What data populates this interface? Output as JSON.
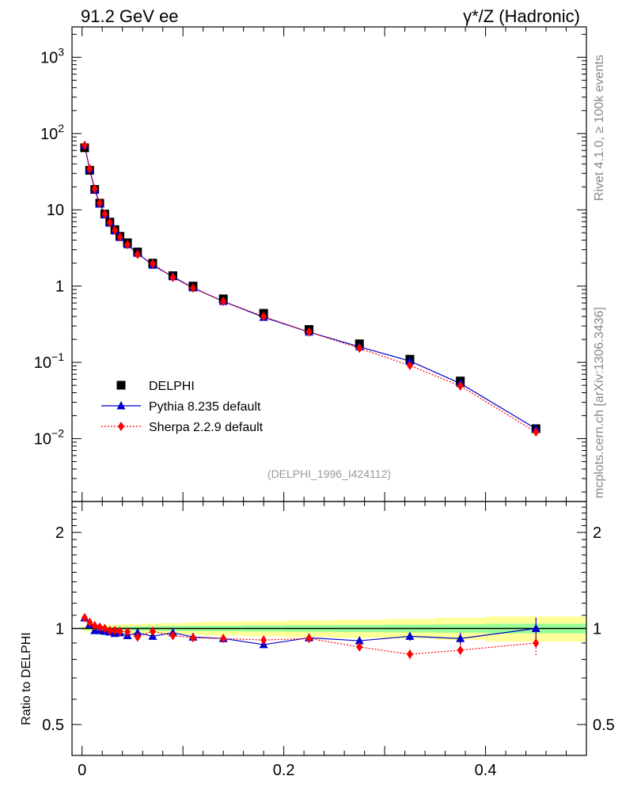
{
  "header": {
    "left_title": "91.2 GeV ee",
    "right_title": "γ*/Z (Hadronic)",
    "side_label_top": "Rivet 4.1.0, ≥ 100k events",
    "side_label_bottom": "mcplots.cern.ch [arXiv:1306.3436]",
    "analysis_id": "(DELPHI_1996_I424112)"
  },
  "colors": {
    "data": "#000000",
    "pythia": "#0000cc",
    "sherpa": "#ff0000",
    "band_inner": "#99ff99",
    "band_outer": "#ffff99"
  },
  "chart_data": [
    {
      "type": "scatter",
      "title": "91.2 GeV ee",
      "xlabel": "",
      "ylabel": "",
      "yscale": "log",
      "ylim": [
        0.0015,
        2500
      ],
      "xlim": [
        -0.01,
        0.5
      ],
      "y_ticks": [
        {
          "value": 0.01,
          "base": "10",
          "exp": "−2"
        },
        {
          "value": 0.1,
          "base": "10",
          "exp": "−1"
        },
        {
          "value": 1,
          "base": "1",
          "exp": ""
        },
        {
          "value": 10,
          "base": "10",
          "exp": ""
        },
        {
          "value": 100,
          "base": "10",
          "exp": "2"
        },
        {
          "value": 1000,
          "base": "10",
          "exp": "3"
        }
      ],
      "legend": [
        "DELPHI",
        "Pythia 8.235 default",
        "Sherpa 2.2.9 default"
      ],
      "legend_position": "bottom-left",
      "x": [
        0.0025,
        0.0075,
        0.0125,
        0.0175,
        0.0225,
        0.0275,
        0.0325,
        0.0375,
        0.045,
        0.055,
        0.07,
        0.09,
        0.11,
        0.14,
        0.18,
        0.225,
        0.275,
        0.325,
        0.375,
        0.45
      ],
      "series": [
        {
          "name": "DELPHI",
          "marker": "square",
          "values": [
            65,
            33,
            18.5,
            12.2,
            8.8,
            6.9,
            5.5,
            4.5,
            3.7,
            2.8,
            2.0,
            1.37,
            1.0,
            0.68,
            0.44,
            0.27,
            0.175,
            0.11,
            0.057,
            0.0135
          ]
        },
        {
          "name": "Pythia 8.235 default",
          "marker": "triangle",
          "values": [
            70,
            34,
            18.2,
            12.0,
            8.6,
            6.7,
            5.3,
            4.35,
            3.5,
            2.7,
            1.88,
            1.33,
            0.95,
            0.63,
            0.39,
            0.25,
            0.16,
            0.104,
            0.053,
            0.0135
          ]
        },
        {
          "name": "Sherpa 2.2.9 default",
          "marker": "diamond",
          "values": [
            70,
            34.5,
            18.8,
            12.3,
            8.8,
            6.8,
            5.4,
            4.4,
            3.5,
            2.6,
            1.96,
            1.3,
            0.94,
            0.63,
            0.4,
            0.25,
            0.153,
            0.091,
            0.049,
            0.0122
          ]
        }
      ]
    },
    {
      "type": "scatter",
      "title": "",
      "xlabel": "",
      "ylabel": "Ratio to DELPHI",
      "yscale": "log",
      "ylim": [
        0.4,
        2.5
      ],
      "xlim": [
        -0.01,
        0.5
      ],
      "y_ticks": [
        {
          "value": 0.5,
          "label": "0.5"
        },
        {
          "value": 1,
          "label": "1"
        },
        {
          "value": 2,
          "label": "2"
        }
      ],
      "x_ticks": [
        {
          "value": 0,
          "label": "0"
        },
        {
          "value": 0.2,
          "label": "0.2"
        },
        {
          "value": 0.4,
          "label": "0.4"
        }
      ],
      "x": [
        0.0025,
        0.0075,
        0.0125,
        0.0175,
        0.0225,
        0.0275,
        0.0325,
        0.0375,
        0.045,
        0.055,
        0.07,
        0.09,
        0.11,
        0.14,
        0.18,
        0.225,
        0.275,
        0.325,
        0.375,
        0.45
      ],
      "x_bin_edges": [
        0,
        0.005,
        0.01,
        0.015,
        0.02,
        0.025,
        0.03,
        0.035,
        0.04,
        0.05,
        0.06,
        0.08,
        0.1,
        0.12,
        0.16,
        0.2,
        0.25,
        0.3,
        0.35,
        0.4,
        0.5
      ],
      "band_inner": [
        0.01,
        0.01,
        0.01,
        0.012,
        0.012,
        0.013,
        0.014,
        0.014,
        0.015,
        0.016,
        0.017,
        0.018,
        0.019,
        0.02,
        0.022,
        0.024,
        0.026,
        0.028,
        0.03,
        0.035
      ],
      "band_outer": [
        0.02,
        0.02,
        0.02,
        0.022,
        0.024,
        0.026,
        0.028,
        0.03,
        0.032,
        0.034,
        0.036,
        0.04,
        0.045,
        0.05,
        0.055,
        0.06,
        0.065,
        0.07,
        0.08,
        0.09
      ],
      "series": [
        {
          "name": "Pythia 8.235 default",
          "marker": "triangle",
          "values": [
            1.08,
            1.03,
            0.985,
            0.985,
            0.98,
            0.975,
            0.965,
            0.97,
            0.95,
            0.97,
            0.945,
            0.97,
            0.94,
            0.93,
            0.89,
            0.935,
            0.915,
            0.945,
            0.93,
            1.0
          ],
          "errors": [
            0.005,
            0.005,
            0.005,
            0.005,
            0.006,
            0.006,
            0.007,
            0.007,
            0.007,
            0.008,
            0.008,
            0.009,
            0.01,
            0.012,
            0.015,
            0.02,
            0.025,
            0.03,
            0.04,
            0.08
          ]
        },
        {
          "name": "Sherpa 2.2.9 default",
          "marker": "diamond",
          "values": [
            1.08,
            1.045,
            1.02,
            1.01,
            1.0,
            0.985,
            0.985,
            0.98,
            0.975,
            0.94,
            0.98,
            0.95,
            0.935,
            0.93,
            0.92,
            0.93,
            0.875,
            0.83,
            0.855,
            0.9
          ],
          "errors": [
            0.005,
            0.005,
            0.005,
            0.005,
            0.006,
            0.006,
            0.007,
            0.007,
            0.007,
            0.008,
            0.008,
            0.009,
            0.01,
            0.012,
            0.015,
            0.02,
            0.025,
            0.03,
            0.04,
            0.08
          ]
        }
      ]
    }
  ]
}
